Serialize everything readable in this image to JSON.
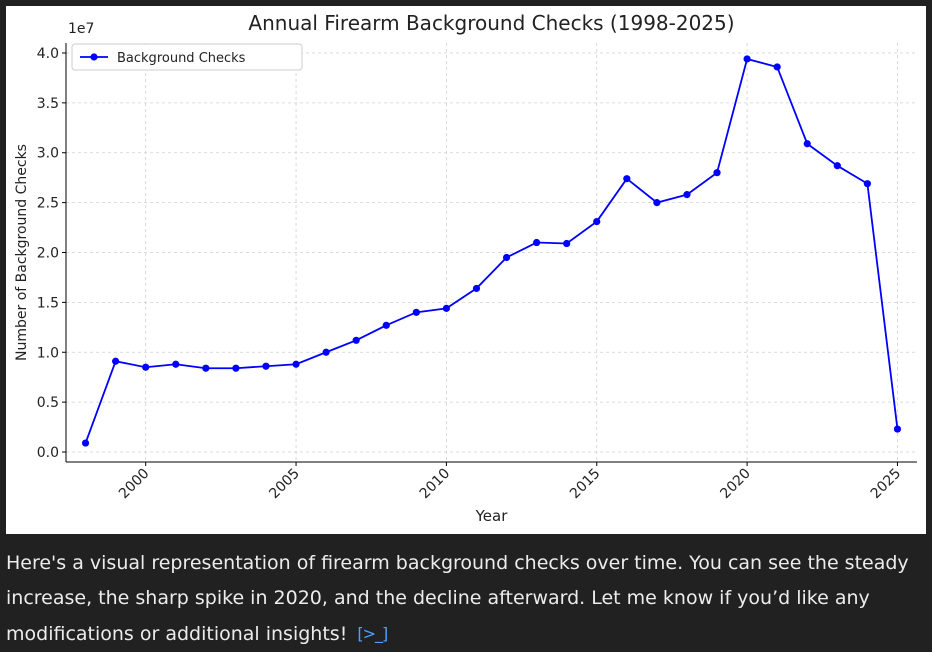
{
  "chart_data": {
    "type": "line",
    "title": "Annual Firearm Background Checks (1998-2025)",
    "xlabel": "Year",
    "ylabel": "Number of Background Checks",
    "y_offset_text": "1e7",
    "xlim": [
      1997.35,
      2025.65
    ],
    "ylim": [
      -0.1,
      4.1
    ],
    "x_ticks": [
      2000,
      2005,
      2010,
      2015,
      2020,
      2025
    ],
    "x_tick_labels": [
      "2000",
      "2005",
      "2010",
      "2015",
      "2020",
      "2025"
    ],
    "y_ticks": [
      0.0,
      0.5,
      1.0,
      1.5,
      2.0,
      2.5,
      3.0,
      3.5,
      4.0
    ],
    "y_tick_labels": [
      "0.0",
      "0.5",
      "1.0",
      "1.5",
      "2.0",
      "2.5",
      "3.0",
      "3.5",
      "4.0"
    ],
    "grid": true,
    "legend_position": "top-left",
    "series": [
      {
        "name": "Background Checks",
        "color": "#0000ff",
        "x": [
          1998,
          1999,
          2000,
          2001,
          2002,
          2003,
          2004,
          2005,
          2006,
          2007,
          2008,
          2009,
          2010,
          2011,
          2012,
          2013,
          2014,
          2015,
          2016,
          2017,
          2018,
          2019,
          2020,
          2021,
          2022,
          2023,
          2024,
          2025
        ],
        "y": [
          0.09,
          0.91,
          0.85,
          0.88,
          0.84,
          0.84,
          0.86,
          0.88,
          1.0,
          1.12,
          1.27,
          1.4,
          1.44,
          1.64,
          1.95,
          2.1,
          2.09,
          2.31,
          2.74,
          2.5,
          2.58,
          2.8,
          3.94,
          3.86,
          3.09,
          2.87,
          2.69,
          0.23
        ]
      }
    ]
  },
  "message": {
    "text": "Here's a visual representation of firearm background checks over time. You can see the steady increase, the sharp spike in 2020, and the decline afterward. Let me know if you’d like any modifications or additional insights!",
    "code_icon": "[>_]",
    "accent_color": "#4ea1ff"
  }
}
